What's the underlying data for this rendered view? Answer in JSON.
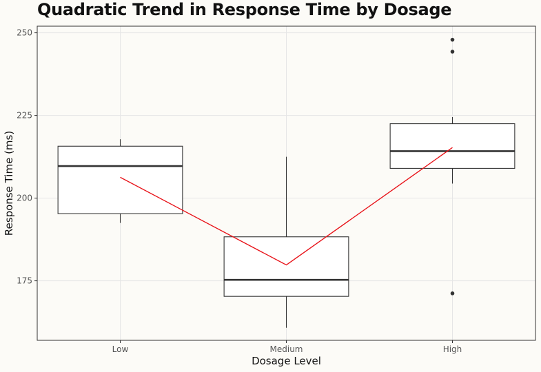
{
  "chart_data": {
    "type": "box",
    "title": "Quadratic Trend in Response Time by Dosage",
    "xlabel": "Dosage Level",
    "ylabel": "Response Time (ms)",
    "ylim": [
      157,
      252
    ],
    "yticks": [
      175,
      200,
      225,
      250
    ],
    "categories": [
      "Low",
      "Medium",
      "High"
    ],
    "boxes": [
      {
        "category": "Low",
        "whisker_low": 192.5,
        "q1": 195.3,
        "median": 209.7,
        "q3": 215.7,
        "whisker_high": 217.8,
        "outliers": []
      },
      {
        "category": "Medium",
        "whisker_low": 160.8,
        "q1": 170.3,
        "median": 175.3,
        "q3": 188.3,
        "whisker_high": 212.5,
        "outliers": []
      },
      {
        "category": "High",
        "whisker_low": 204.4,
        "q1": 209.0,
        "median": 214.2,
        "q3": 222.5,
        "whisker_high": 224.5,
        "outliers": [
          171.2,
          244.3,
          247.9
        ]
      }
    ],
    "trend_line": {
      "color": "#e8141a",
      "values": [
        206.3,
        179.8,
        215.3
      ]
    },
    "colors": {
      "box_fill": "#ffffff",
      "box_stroke": "#333333",
      "outlier": "#333333",
      "grid": "#e6e6e6",
      "panel_border": "#333333",
      "background": "#fcfbf7"
    },
    "grid": true,
    "legend": "none"
  }
}
